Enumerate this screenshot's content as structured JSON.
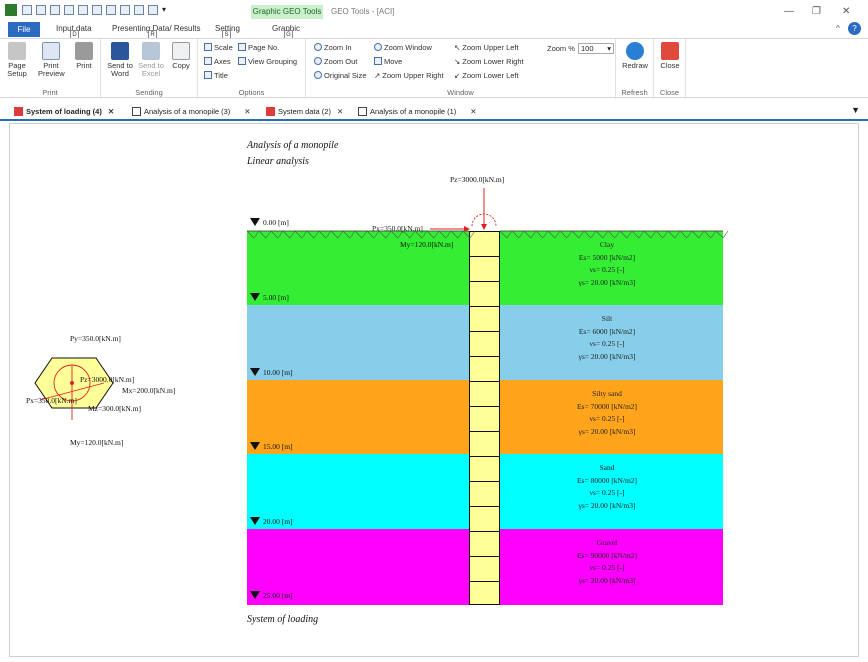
{
  "window": {
    "context_tab": "Graphic GEO Tools",
    "title": "GEO Tools - [ACI]"
  },
  "ribbon_tabs": {
    "file": "File",
    "input": "Input data",
    "presenting": "Presenting Data/ Results",
    "setting": "Setting",
    "graphic": "Graphic",
    "keytips": {
      "input": "D",
      "presenting": "R",
      "setting": "S",
      "graphic": "G"
    }
  },
  "groups": {
    "print": {
      "label": "Print",
      "page_setup": "Page Setup",
      "print_preview": "Print Preview",
      "print": "Print"
    },
    "sending": {
      "label": "Sending",
      "send_word": "Send to Word",
      "send_excel": "Send to Excel",
      "copy": "Copy"
    },
    "options": {
      "label": "Options",
      "scale": "Scale",
      "axes": "Axes",
      "title": "Title",
      "page_no": "Page No.",
      "view_grouping": "View Grouping"
    },
    "window": {
      "label": "Window",
      "zoom_in": "Zoom In",
      "zoom_out": "Zoom Out",
      "original_size": "Original Size",
      "zoom_window": "Zoom Window",
      "move": "Move",
      "zoom_upper_right": "Zoom Upper Right",
      "zoom_upper_left": "Zoom Upper Left",
      "zoom_lower_right": "Zoom Lower Right",
      "zoom_lower_left": "Zoom Lower Left",
      "zoom_pct_label": "Zoom %",
      "zoom_pct_value": "100"
    },
    "refresh": {
      "label": "Refresh",
      "redraw": "Redraw"
    },
    "close": {
      "label": "Close",
      "close": "Close"
    }
  },
  "doc_tabs": [
    {
      "label": "System of loading (4)",
      "active": true
    },
    {
      "label": "Analysis of a monopile (3)",
      "active": false
    },
    {
      "label": "System data (2)",
      "active": false
    },
    {
      "label": "Analysis of a monopile (1)",
      "active": false
    }
  ],
  "drawing": {
    "title1": "Analysis of a monopile",
    "title2": "Linear analysis",
    "footer": "System of loading",
    "pz_top": "Pz=3000.0[kN.m]",
    "px_pile": "Px=350.0[kN.m]",
    "my_pile": "My=120.0[kN.m]",
    "plan": {
      "py": "Py=350.0[kN.m]",
      "pz": "Pz=3000.0[kN.m]",
      "mx": "Mx=200.0[kN.m]",
      "px": "Px=350.0[kN.m]",
      "mz": "Mz=300.0[kN.m]",
      "my": "My=120.0[kN.m]"
    },
    "depth_top": "0.00 [m]",
    "layers": [
      {
        "name": "Clay",
        "es": "Es= 5000 [kN/m2]",
        "nu": "νs= 0.25 [-]",
        "gamma": "γs= 20.00 [kN/m3]",
        "depth": "5.00 [m]",
        "color": "#33ee33"
      },
      {
        "name": "Silt",
        "es": "Es= 6000 [kN/m2]",
        "nu": "νs= 0.25 [-]",
        "gamma": "γs= 20.00 [kN/m3]",
        "depth": "10.00 [m]",
        "color": "#87ceea"
      },
      {
        "name": "Silty sand",
        "es": "Es= 70000 [kN/m2]",
        "nu": "νs= 0.25 [-]",
        "gamma": "γs= 20.00 [kN/m3]",
        "depth": "15.00 [m]",
        "color": "#ffa41b"
      },
      {
        "name": "Sand",
        "es": "Es= 80000 [kN/m2]",
        "nu": "νs= 0.25 [-]",
        "gamma": "γs= 20.00 [kN/m3]",
        "depth": "20.00 [m]",
        "color": "#00ffff"
      },
      {
        "name": "Gravel",
        "es": "Es= 90000 [kN/m2]",
        "nu": "νs= 0.25 [-]",
        "gamma": "γs= 20.00 [kN/m3]",
        "depth": "25.00 [m]",
        "color": "#ff00ff"
      }
    ]
  },
  "colors": {
    "accent": "#2b6cc2",
    "context": "#c9efcc",
    "pile": "#ffff99"
  }
}
